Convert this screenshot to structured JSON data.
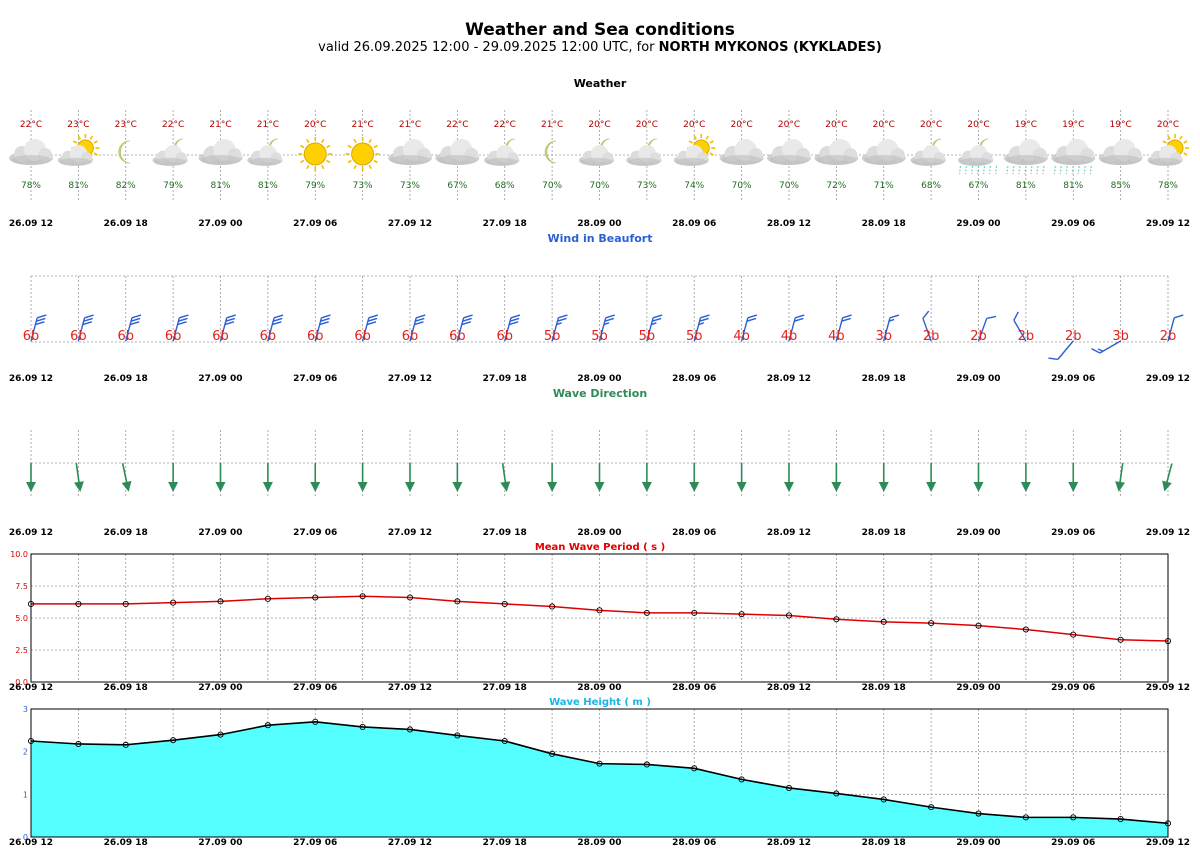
{
  "header": {
    "title": "Weather and Sea conditions",
    "subtitle_prefix": "valid 26.09.2025 12:00 - 29.09.2025 12:00 UTC, for",
    "location": "NORTH MYKONOS (KYKLADES)"
  },
  "time_labels": [
    "26.09 12",
    "26.09 18",
    "27.09 00",
    "27.09 06",
    "27.09 12",
    "27.09 18",
    "28.09 00",
    "28.09 06",
    "28.09 12",
    "28.09 18",
    "29.09 00",
    "29.09 06",
    "29.09 12"
  ],
  "colors": {
    "temp": "#b00000",
    "humidity": "#1e6b1e",
    "wind_barb": "#2a5fd6",
    "wind_value": "#e02020",
    "wave_dir": "#2e8b57",
    "period_line": "#dd0000",
    "height_fill": "#55ffff",
    "grid": "#999999"
  },
  "weather": {
    "label": "Weather",
    "temps": [
      "22°C",
      "23°C",
      "23°C",
      "22°C",
      "21°C",
      "21°C",
      "20°C",
      "21°C",
      "21°C",
      "22°C",
      "22°C",
      "21°C",
      "20°C",
      "20°C",
      "20°C",
      "20°C",
      "20°C",
      "20°C",
      "20°C",
      "20°C",
      "20°C",
      "19°C",
      "19°C",
      "19°C",
      "20°C"
    ],
    "humidity": [
      "78%",
      "81%",
      "82%",
      "79%",
      "81%",
      "81%",
      "79%",
      "73%",
      "73%",
      "67%",
      "68%",
      "70%",
      "70%",
      "73%",
      "74%",
      "70%",
      "70%",
      "72%",
      "71%",
      "68%",
      "67%",
      "81%",
      "81%",
      "85%",
      "78%"
    ],
    "icons": [
      "cloud-icon",
      "sun-cloud-icon",
      "moon-icon",
      "moon-cloud-icon",
      "cloud-icon",
      "moon-cloud-icon",
      "sun-icon",
      "sun-icon",
      "cloud-icon",
      "cloud-icon",
      "moon-cloud-icon",
      "moon-icon",
      "moon-cloud-icon",
      "moon-cloud-icon",
      "sun-cloud-icon",
      "cloud-icon",
      "cloud-icon",
      "cloud-icon",
      "cloud-icon",
      "moon-cloud-icon",
      "rain-moon-cloud-icon",
      "rain-cloud-icon",
      "rain-cloud-icon",
      "cloud-icon",
      "sun-cloud-icon"
    ]
  },
  "wind": {
    "label": "Wind in Beaufort",
    "values": [
      "6b",
      "6b",
      "6b",
      "6b",
      "6b",
      "6b",
      "6b",
      "6b",
      "6b",
      "6b",
      "6b",
      "5b",
      "5b",
      "5b",
      "5b",
      "4b",
      "4b",
      "4b",
      "3b",
      "2b",
      "2b",
      "2b",
      "2b",
      "3b",
      "2b"
    ],
    "beaufort": [
      6,
      6,
      6,
      6,
      6,
      6,
      6,
      6,
      6,
      6,
      6,
      5,
      5,
      5,
      5,
      4,
      4,
      4,
      3,
      2,
      2,
      2,
      2,
      3,
      2
    ],
    "direction_deg": [
      15,
      15,
      15,
      15,
      15,
      15,
      15,
      15,
      15,
      15,
      15,
      15,
      15,
      15,
      15,
      15,
      15,
      15,
      15,
      340,
      20,
      330,
      220,
      240,
      15
    ]
  },
  "wave_direction": {
    "label": "Wave Direction",
    "direction_deg": [
      180,
      172,
      168,
      180,
      180,
      180,
      180,
      180,
      180,
      180,
      172,
      180,
      180,
      180,
      180,
      180,
      180,
      180,
      180,
      180,
      180,
      180,
      180,
      188,
      195
    ]
  },
  "chart_data": [
    {
      "type": "line",
      "title": "Mean Wave Period ( s )",
      "x": [
        "26.09 12",
        "26.09 15",
        "26.09 18",
        "26.09 21",
        "27.09 00",
        "27.09 03",
        "27.09 06",
        "27.09 09",
        "27.09 12",
        "27.09 15",
        "27.09 18",
        "27.09 21",
        "28.09 00",
        "28.09 03",
        "28.09 06",
        "28.09 09",
        "28.09 12",
        "28.09 15",
        "28.09 18",
        "28.09 21",
        "29.09 00",
        "29.09 03",
        "29.09 06",
        "29.09 09",
        "29.09 12"
      ],
      "values": [
        6.1,
        6.1,
        6.1,
        6.2,
        6.3,
        6.5,
        6.6,
        6.7,
        6.6,
        6.3,
        6.1,
        5.9,
        5.6,
        5.4,
        5.4,
        5.3,
        5.2,
        4.9,
        4.7,
        4.6,
        4.4,
        4.1,
        3.7,
        3.3,
        3.2
      ],
      "ylim": [
        0,
        10
      ],
      "yticks": [
        "0.0",
        "2.5",
        "5.0",
        "7.5",
        "10.0"
      ],
      "grid": true
    },
    {
      "type": "area",
      "title": "Wave Height ( m )",
      "x": [
        "26.09 12",
        "26.09 15",
        "26.09 18",
        "26.09 21",
        "27.09 00",
        "27.09 03",
        "27.09 06",
        "27.09 09",
        "27.09 12",
        "27.09 15",
        "27.09 18",
        "27.09 21",
        "28.09 00",
        "28.09 03",
        "28.09 06",
        "28.09 09",
        "28.09 12",
        "28.09 15",
        "28.09 18",
        "28.09 21",
        "29.09 00",
        "29.09 03",
        "29.09 06",
        "29.09 09",
        "29.09 12"
      ],
      "values": [
        2.25,
        2.18,
        2.16,
        2.27,
        2.4,
        2.62,
        2.7,
        2.58,
        2.52,
        2.38,
        2.25,
        1.95,
        1.72,
        1.7,
        1.61,
        1.35,
        1.15,
        1.02,
        0.88,
        0.7,
        0.55,
        0.46,
        0.46,
        0.42,
        0.32
      ],
      "ylim": [
        0,
        3
      ],
      "yticks": [
        "0",
        "1",
        "2",
        "3"
      ],
      "grid": true
    }
  ]
}
